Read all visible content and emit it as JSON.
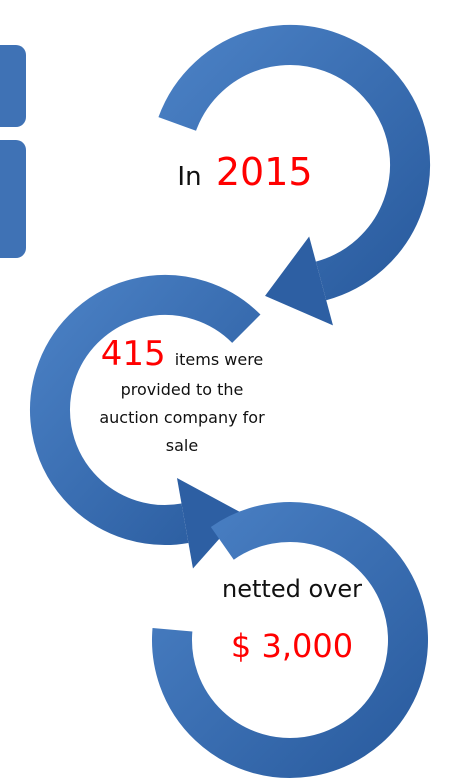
{
  "steps": [
    {
      "prefix": "In",
      "highlight": "2015"
    },
    {
      "highlight": "415",
      "suffix": "items were",
      "lines": [
        "provided to the",
        "auction company for",
        "sale"
      ]
    },
    {
      "prefix": "netted over",
      "highlight": "$ 3,000"
    }
  ]
}
